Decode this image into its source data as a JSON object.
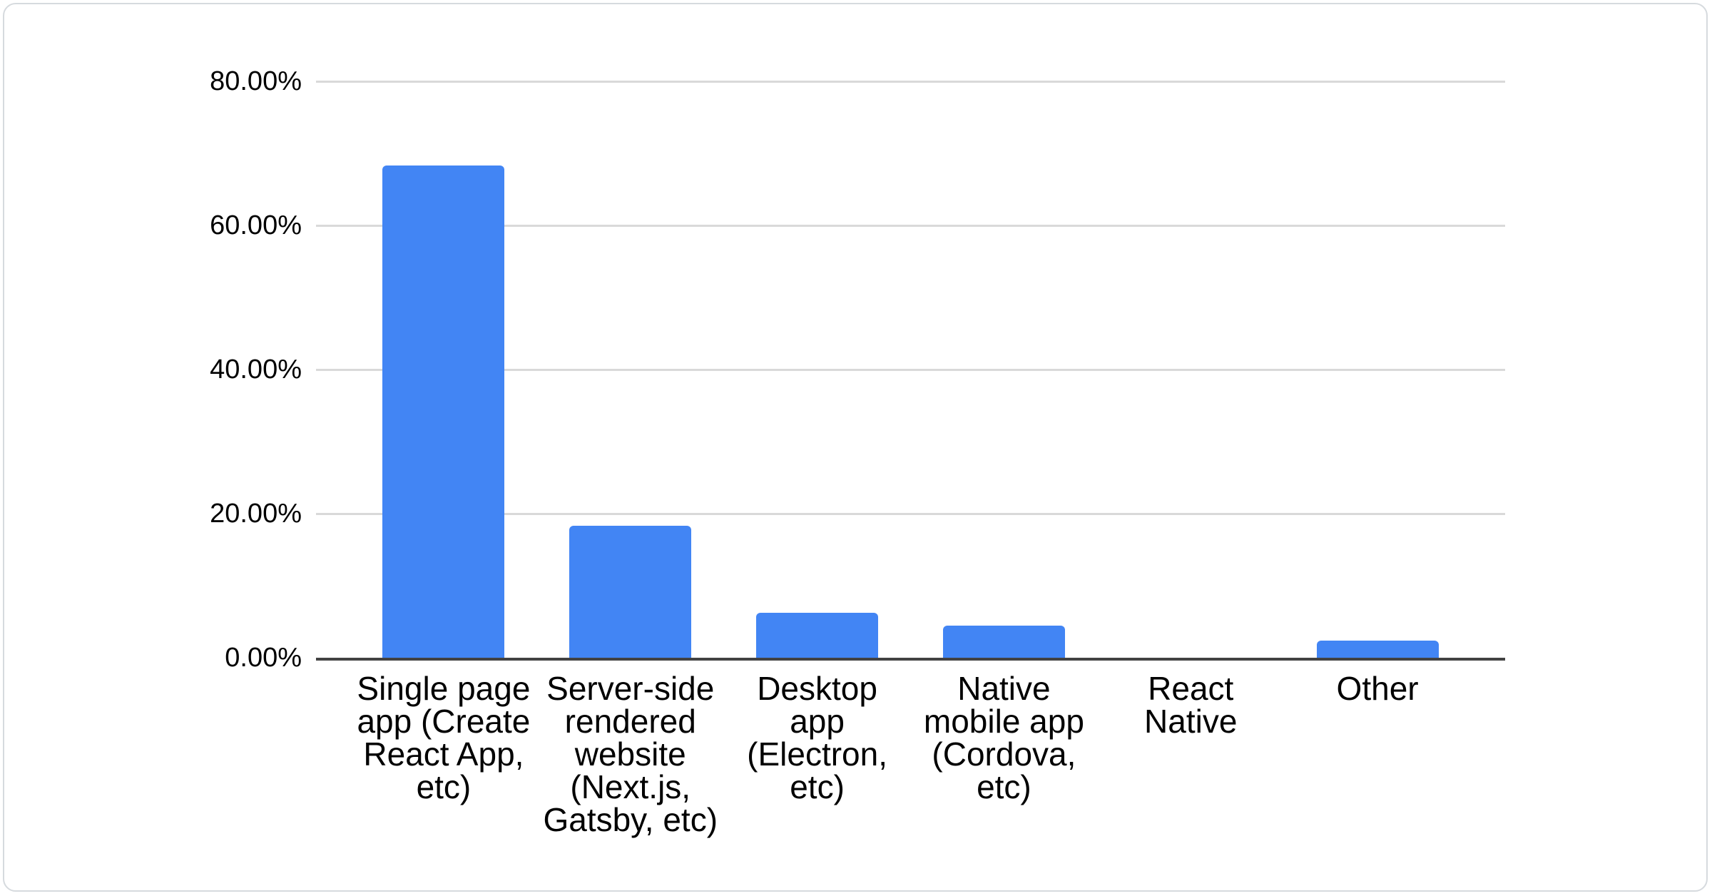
{
  "chart_data": {
    "type": "bar",
    "title": "",
    "xlabel": "",
    "ylabel": "",
    "legend": "none",
    "grid": "on",
    "ylim": [
      0,
      80
    ],
    "yticks": [
      {
        "value": 80,
        "label": "80.00%"
      },
      {
        "value": 60,
        "label": "60.00%"
      },
      {
        "value": 40,
        "label": "40.00%"
      },
      {
        "value": 20,
        "label": "20.00%"
      },
      {
        "value": 0,
        "label": "0.00%"
      }
    ],
    "categories": [
      "Single page app (Create React App, etc)",
      "Server-side rendered website (Next.js, Gatsby, etc)",
      "Desktop app (Electron, etc)",
      "Native mobile app (Cordova, etc)",
      "React Native",
      "Other"
    ],
    "categories_wrapped": [
      "Single page\napp (Create\nReact App,\netc)",
      "Server-side\nrendered\nwebsite\n(Next.js,\nGatsby, etc)",
      "Desktop\napp\n(Electron,\netc)",
      "Native\nmobile app\n(Cordova,\netc)",
      "React\nNative",
      "Other"
    ],
    "values": [
      68.3,
      18.3,
      6.2,
      4.5,
      0,
      2.4
    ],
    "unit": "%",
    "colors": {
      "bar": "#4285f4",
      "grid": "#d9d9d9",
      "axis": "#424242",
      "text": "#000000",
      "card_border": "#d6dade",
      "background": "#ffffff"
    }
  }
}
